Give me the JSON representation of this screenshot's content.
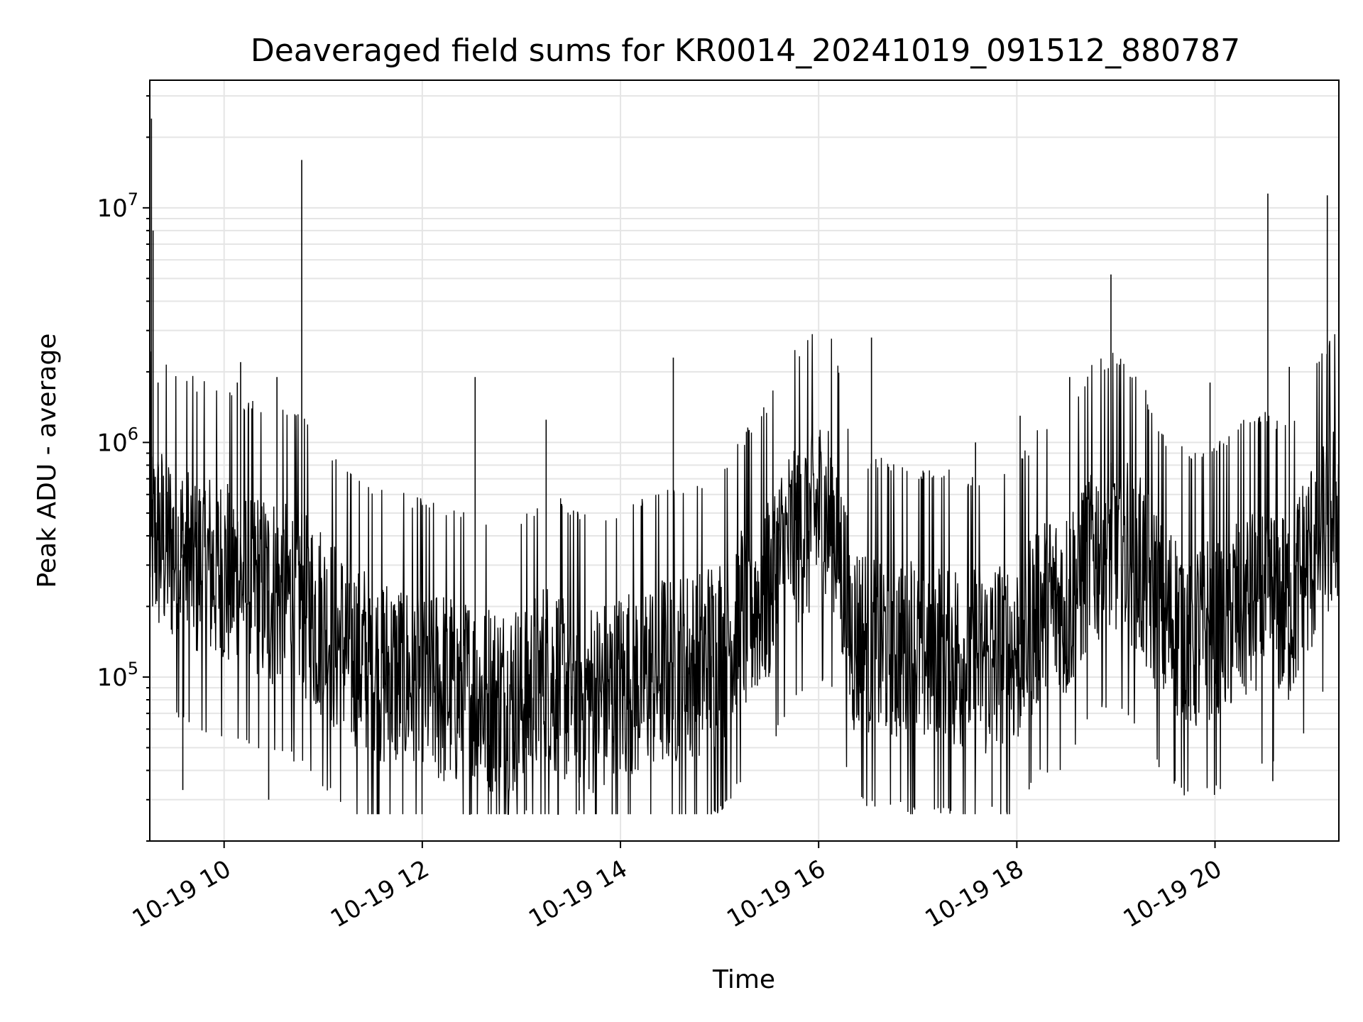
{
  "chart_data": {
    "type": "line",
    "title": "Deaveraged field sums for KR0014_20241019_091512_880787",
    "xlabel": "Time",
    "ylabel": "Peak ADU - average",
    "x_axis": {
      "type": "datetime",
      "range": [
        "2024-10-19 09:15",
        "2024-10-19 21:15"
      ],
      "ticks": [
        {
          "value": "2024-10-19 10:00",
          "label": "10-19 10"
        },
        {
          "value": "2024-10-19 12:00",
          "label": "10-19 12"
        },
        {
          "value": "2024-10-19 14:00",
          "label": "10-19 14"
        },
        {
          "value": "2024-10-19 16:00",
          "label": "10-19 16"
        },
        {
          "value": "2024-10-19 18:00",
          "label": "10-19 18"
        },
        {
          "value": "2024-10-19 20:00",
          "label": "10-19 20"
        }
      ]
    },
    "y_axis": {
      "scale": "log",
      "range": [
        20000,
        35000000
      ],
      "ticks": [
        {
          "value": 100000,
          "base": "10",
          "exp": "5"
        },
        {
          "value": 1000000,
          "base": "10",
          "exp": "6"
        },
        {
          "value": 10000000,
          "base": "10",
          "exp": "7"
        }
      ]
    },
    "grid": true,
    "series": [
      {
        "color": "#000000",
        "points": [
          [
            "2024-10-19 09:15",
            400000
          ],
          [
            "2024-10-19 09:30",
            350000
          ],
          [
            "2024-10-19 09:45",
            300000
          ],
          [
            "2024-10-19 10:00",
            280000
          ],
          [
            "2024-10-19 10:15",
            250000
          ],
          [
            "2024-10-19 10:30",
            230000
          ],
          [
            "2024-10-19 10:45",
            220000
          ],
          [
            "2024-10-19 11:00",
            170000
          ],
          [
            "2024-10-19 11:15",
            130000
          ],
          [
            "2024-10-19 11:30",
            110000
          ],
          [
            "2024-10-19 11:45",
            100000
          ],
          [
            "2024-10-19 12:00",
            95000
          ],
          [
            "2024-10-19 12:15",
            90000
          ],
          [
            "2024-10-19 12:30",
            85000
          ],
          [
            "2024-10-19 12:45",
            80000
          ],
          [
            "2024-10-19 13:00",
            80000
          ],
          [
            "2024-10-19 13:15",
            100000
          ],
          [
            "2024-10-19 13:30",
            90000
          ],
          [
            "2024-10-19 13:45",
            80000
          ],
          [
            "2024-10-19 14:00",
            90000
          ],
          [
            "2024-10-19 14:15",
            100000
          ],
          [
            "2024-10-19 14:30",
            110000
          ],
          [
            "2024-10-19 14:45",
            110000
          ],
          [
            "2024-10-19 15:00",
            130000
          ],
          [
            "2024-10-19 15:15",
            180000
          ],
          [
            "2024-10-19 15:30",
            250000
          ],
          [
            "2024-10-19 15:45",
            400000
          ],
          [
            "2024-10-19 16:00",
            500000
          ],
          [
            "2024-10-19 16:10",
            450000
          ],
          [
            "2024-10-19 16:20",
            150000
          ],
          [
            "2024-10-19 16:30",
            140000
          ],
          [
            "2024-10-19 16:45",
            140000
          ],
          [
            "2024-10-19 17:00",
            130000
          ],
          [
            "2024-10-19 17:15",
            130000
          ],
          [
            "2024-10-19 17:30",
            120000
          ],
          [
            "2024-10-19 17:45",
            120000
          ],
          [
            "2024-10-19 18:00",
            130000
          ],
          [
            "2024-10-19 18:15",
            200000
          ],
          [
            "2024-10-19 18:30",
            200000
          ],
          [
            "2024-10-19 18:45",
            350000
          ],
          [
            "2024-10-19 19:00",
            400000
          ],
          [
            "2024-10-19 19:15",
            300000
          ],
          [
            "2024-10-19 19:30",
            180000
          ],
          [
            "2024-10-19 19:45",
            150000
          ],
          [
            "2024-10-19 20:00",
            160000
          ],
          [
            "2024-10-19 20:15",
            200000
          ],
          [
            "2024-10-19 20:30",
            220000
          ],
          [
            "2024-10-19 20:45",
            200000
          ],
          [
            "2024-10-19 21:00",
            350000
          ],
          [
            "2024-10-19 21:15",
            550000
          ]
        ],
        "spikes": [
          [
            "2024-10-19 09:16",
            24000000
          ],
          [
            "2024-10-19 09:17",
            8000000
          ],
          [
            "2024-10-19 09:20",
            1800000
          ],
          [
            "2024-10-19 10:08",
            1800000
          ],
          [
            "2024-10-19 10:10",
            2200000
          ],
          [
            "2024-10-19 10:32",
            1900000
          ],
          [
            "2024-10-19 10:47",
            16000000
          ],
          [
            "2024-10-19 12:32",
            1900000
          ],
          [
            "2024-10-19 13:15",
            1250000
          ],
          [
            "2024-10-19 14:32",
            2300000
          ],
          [
            "2024-10-19 16:32",
            2800000
          ],
          [
            "2024-10-19 17:35",
            1000000
          ],
          [
            "2024-10-19 18:02",
            1300000
          ],
          [
            "2024-10-19 18:32",
            1900000
          ],
          [
            "2024-10-19 18:57",
            5200000
          ],
          [
            "2024-10-19 19:57",
            1800000
          ],
          [
            "2024-10-19 20:32",
            11500000
          ],
          [
            "2024-10-19 20:45",
            2100000
          ],
          [
            "2024-10-19 21:08",
            11300000
          ]
        ],
        "dips": [
          [
            "2024-10-19 09:35",
            33000
          ],
          [
            "2024-10-19 10:27",
            30000
          ],
          [
            "2024-10-19 13:03",
            27000
          ],
          [
            "2024-10-19 13:35",
            27000
          ],
          [
            "2024-10-19 13:55",
            26000
          ],
          [
            "2024-10-19 14:55",
            26000
          ],
          [
            "2024-10-19 17:45",
            28000
          ],
          [
            "2024-10-19 20:35",
            36000
          ]
        ]
      }
    ]
  }
}
